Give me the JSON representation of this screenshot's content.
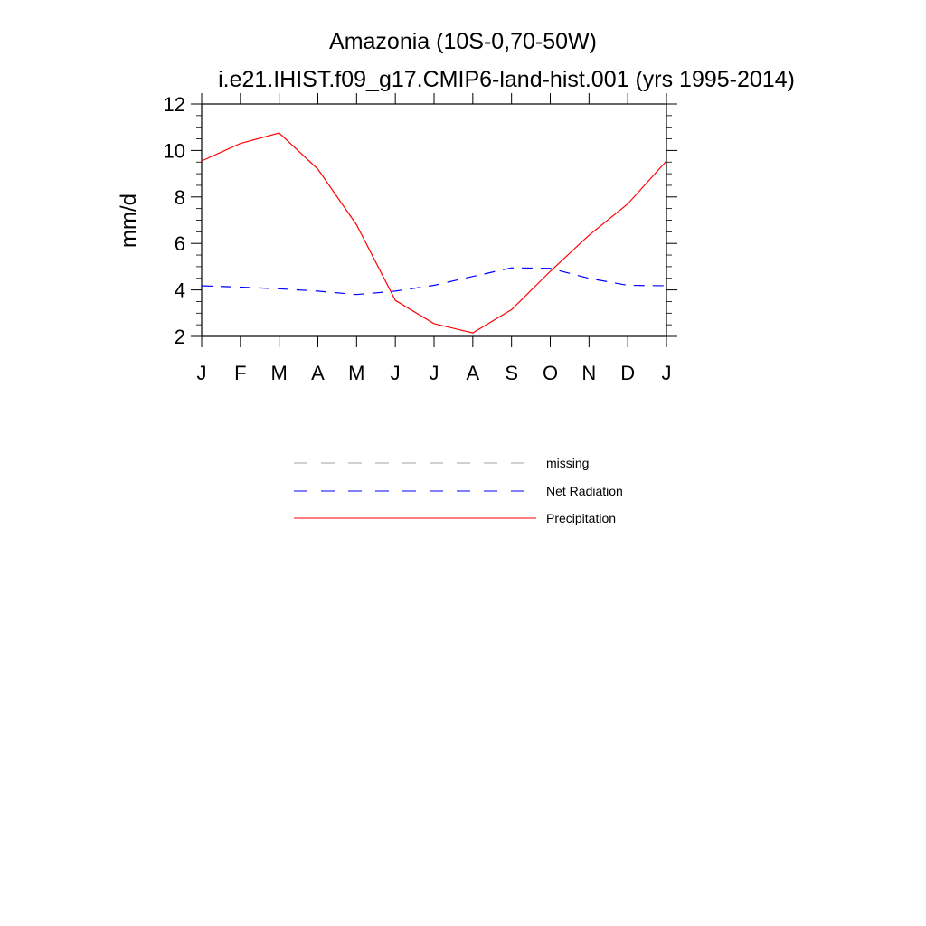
{
  "chart_data": {
    "type": "line",
    "title": "Amazonia (10S-0,70-50W)",
    "subtitle": "i.e21.IHIST.f09_g17.CMIP6-land-hist.001 (yrs 1995-2014)",
    "xlabel": "",
    "ylabel": "mm/d",
    "categories": [
      "J",
      "F",
      "M",
      "A",
      "M",
      "J",
      "J",
      "A",
      "S",
      "O",
      "N",
      "D",
      "J"
    ],
    "ylim": [
      2,
      12
    ],
    "yticks": [
      "2",
      "4",
      "6",
      "8",
      "10",
      "12"
    ],
    "grid": false,
    "legend_position": "bottom",
    "legend": [
      {
        "name": "missing",
        "color": "#a0a0a0",
        "style": "dashed"
      },
      {
        "name": "Net Radiation",
        "color": "#0000ff",
        "style": "dashed"
      },
      {
        "name": "Precipitation",
        "color": "#ff0000",
        "style": "solid"
      }
    ],
    "series": [
      {
        "name": "Net Radiation",
        "color": "#0000ff",
        "style": "dashed",
        "values": [
          4.18,
          4.12,
          4.05,
          3.95,
          3.8,
          3.95,
          4.2,
          4.58,
          4.95,
          4.93,
          4.5,
          4.2,
          4.18
        ]
      },
      {
        "name": "Precipitation",
        "color": "#ff0000",
        "style": "solid",
        "values": [
          9.55,
          10.3,
          10.75,
          9.2,
          6.8,
          3.55,
          2.55,
          2.15,
          3.15,
          4.8,
          6.35,
          7.7,
          9.55
        ]
      }
    ]
  }
}
